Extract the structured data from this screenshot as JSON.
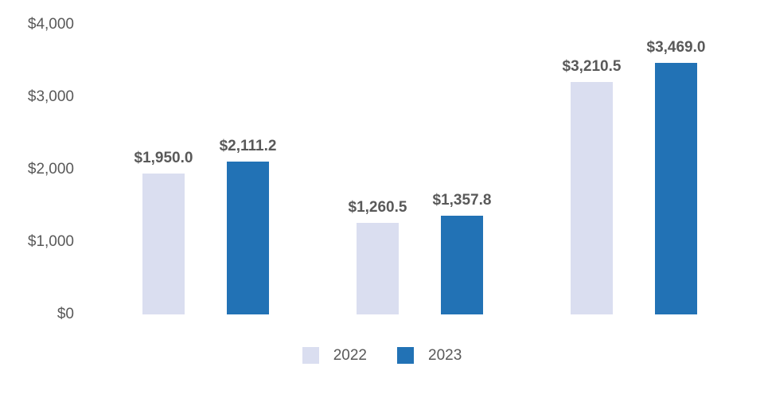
{
  "chart_data": {
    "type": "bar",
    "title": "",
    "categories": [
      "",
      "",
      ""
    ],
    "series": [
      {
        "name": "2022",
        "color": "#DADEF0",
        "values": [
          1950.0,
          1260.5,
          3210.5
        ],
        "labels": [
          "$1,950.0",
          "$1,260.5",
          "$3,210.5"
        ]
      },
      {
        "name": "2023",
        "color": "#2272B5",
        "values": [
          2111.2,
          1357.8,
          3469.0
        ],
        "labels": [
          "$2,111.2",
          "$1,357.8",
          "$3,469.0"
        ]
      }
    ],
    "ylim": [
      0,
      4000
    ],
    "yticks": [
      {
        "value": 0,
        "label": "$0"
      },
      {
        "value": 1000,
        "label": "$1,000"
      },
      {
        "value": 2000,
        "label": "$2,000"
      },
      {
        "value": 3000,
        "label": "$3,000"
      },
      {
        "value": 4000,
        "label": "$4,000"
      }
    ],
    "grid": false,
    "axis_lines": false,
    "legend_position": "bottom"
  },
  "legend": {
    "items": [
      {
        "label": "2022",
        "color": "#DADEF0"
      },
      {
        "label": "2023",
        "color": "#2272B5"
      }
    ]
  },
  "colors": {
    "background": "#FFFFFF",
    "axis_text": "#595959",
    "value_label_text": "#595959",
    "series_2022": "#DADEF0",
    "series_2023": "#2272B5"
  }
}
